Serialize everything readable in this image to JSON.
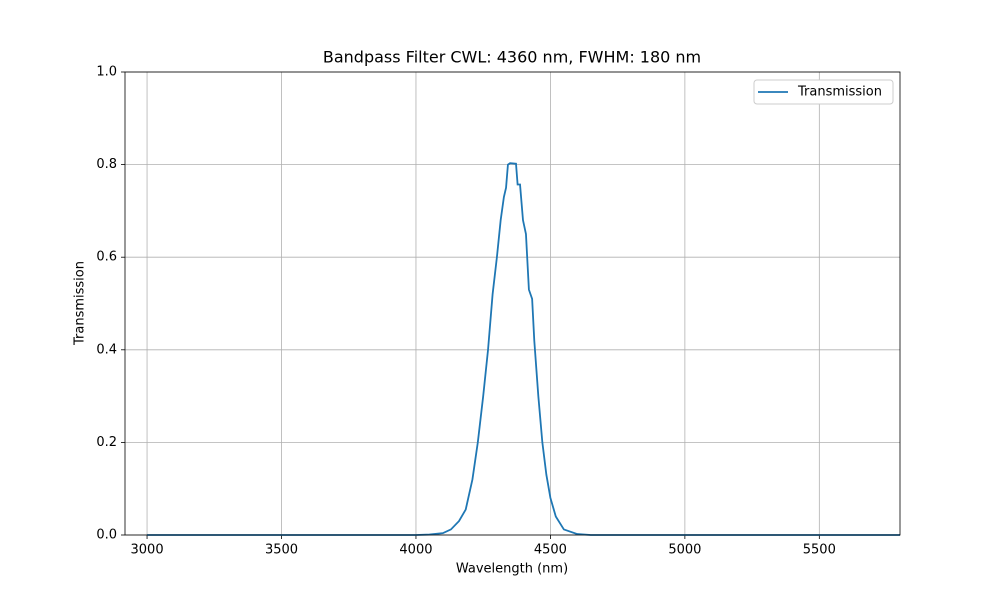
{
  "chart_data": {
    "type": "line",
    "title": "Bandpass Filter CWL: 4360 nm, FWHM: 180 nm",
    "x_label": "Wavelength (nm)",
    "y_label": "Transmission",
    "x": [
      3000,
      3500,
      3800,
      4000,
      4050,
      4100,
      4130,
      4160,
      4185,
      4210,
      4230,
      4250,
      4268,
      4285,
      4301,
      4315,
      4327,
      4335,
      4342,
      4350,
      4372,
      4378,
      4387,
      4398,
      4409,
      4420,
      4432,
      4440,
      4455,
      4470,
      4485,
      4500,
      4520,
      4550,
      4600,
      4650,
      4700,
      5000,
      5800
    ],
    "series": [
      {
        "name": "Transmission",
        "color": "#1f77b4",
        "values": [
          0,
          0,
          0,
          0,
          0.001,
          0.004,
          0.012,
          0.03,
          0.055,
          0.12,
          0.2,
          0.3,
          0.4,
          0.52,
          0.6,
          0.68,
          0.73,
          0.75,
          0.8,
          0.803,
          0.802,
          0.757,
          0.757,
          0.68,
          0.65,
          0.53,
          0.51,
          0.42,
          0.3,
          0.2,
          0.13,
          0.08,
          0.04,
          0.012,
          0.002,
          0,
          0,
          0,
          0
        ]
      }
    ],
    "xlim": [
      2918,
      5800
    ],
    "xticks": [
      3000,
      3500,
      4000,
      4500,
      5000,
      5500
    ],
    "ylim": [
      0,
      1
    ],
    "yticks": [
      {
        "value": 0,
        "label": "0.0"
      },
      {
        "value": 0.2,
        "label": "0.2"
      },
      {
        "value": 0.4,
        "label": "0.4"
      },
      {
        "value": 0.6,
        "label": "0.6"
      },
      {
        "value": 0.8,
        "label": "0.8"
      },
      {
        "value": 1,
        "label": "1.0"
      }
    ],
    "grid": true,
    "legend": "upper right"
  }
}
